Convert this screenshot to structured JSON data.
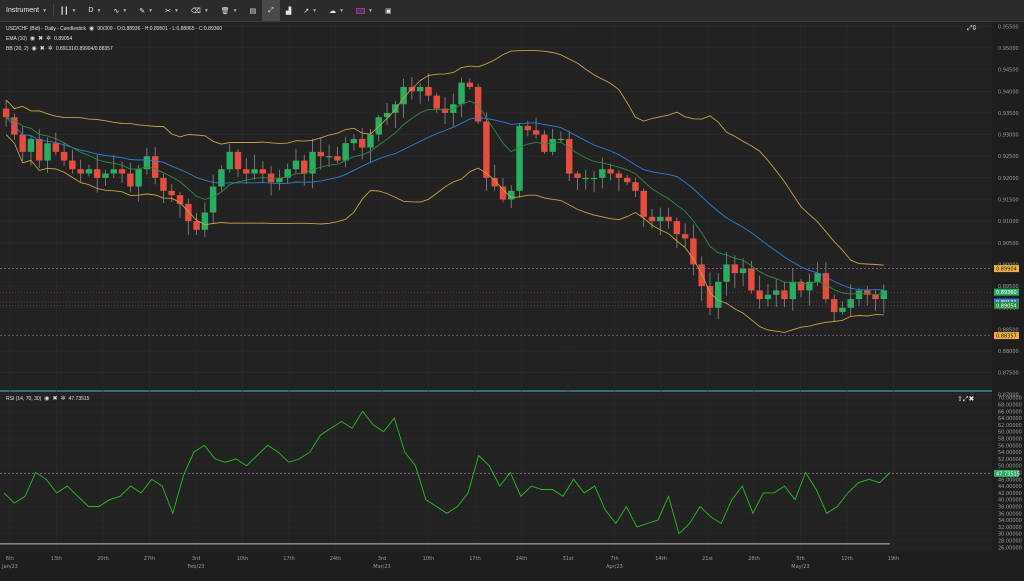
{
  "toolbar": {
    "instrument_label": "Instrument",
    "period_label": "D",
    "items": [
      "candle-type",
      "drawing-pencil",
      "crosshair",
      "eraser",
      "trash",
      "template",
      "fullscreen",
      "chart-bars",
      "share",
      "weather-settings",
      "language-flag",
      "maximize"
    ]
  },
  "legend": {
    "main": "USD/CHF (Bid) - Daily - Candlestick",
    "main_values": "90/300 - O:0.88936 - H:0.89501 - L:0.88865 - C:0.89360",
    "ema": "EMA (10)",
    "ema_value": "0.89054",
    "bb": "BB (20, 2)",
    "bb_value": "0.89131/0.89904/0.88357",
    "rsi": "RSI (14, 70, 30)",
    "rsi_value": "47.73515"
  },
  "price_axis": {
    "ticks": [
      "0.95500",
      "0.95000",
      "0.94500",
      "0.94000",
      "0.93500",
      "0.93000",
      "0.92500",
      "0.92000",
      "0.91500",
      "0.91000",
      "0.90500",
      "0.90000",
      "0.89500",
      "0.89000",
      "0.88500",
      "0.88000",
      "0.87500",
      "0.87000"
    ],
    "badges": [
      {
        "label": "0.89904",
        "value": 0.89904,
        "color": "#f0b23a",
        "text_color": "#222"
      },
      {
        "label": "0.89360",
        "value": 0.8936,
        "color": "#27ae60",
        "text_color": "#fff"
      },
      {
        "label": "0.89131",
        "value": 0.89131,
        "color": "#2a7fd4",
        "text_color": "#fff"
      },
      {
        "label": "0.89054",
        "value": 0.89054,
        "color": "#2e8b3e",
        "text_color": "#fff"
      },
      {
        "label": "0.88357",
        "value": 0.88357,
        "color": "#f0b23a",
        "text_color": "#222"
      }
    ]
  },
  "rsi_axis": {
    "ticks": [
      "70.00000",
      "68.00000",
      "66.00000",
      "64.00000",
      "62.00000",
      "60.00000",
      "58.00000",
      "56.00000",
      "54.00000",
      "52.00000",
      "50.00000",
      "48.00000",
      "46.00000",
      "44.00000",
      "42.00000",
      "40.00000",
      "38.00000",
      "36.00000",
      "34.00000",
      "32.00000",
      "30.00000",
      "28.00000",
      "26.00000"
    ],
    "badge": {
      "label": "47.73515",
      "value": 47.73515,
      "color": "#27ae60"
    }
  },
  "time_axis": {
    "labels": [
      {
        "t": "6th",
        "sub": "Jan/23"
      },
      {
        "t": "13th",
        "sub": ""
      },
      {
        "t": "20th",
        "sub": ""
      },
      {
        "t": "27th",
        "sub": ""
      },
      {
        "t": "3rd",
        "sub": "Feb/23"
      },
      {
        "t": "10th",
        "sub": ""
      },
      {
        "t": "17th",
        "sub": ""
      },
      {
        "t": "24th",
        "sub": ""
      },
      {
        "t": "3rd",
        "sub": "Mar/23"
      },
      {
        "t": "10th",
        "sub": ""
      },
      {
        "t": "17th",
        "sub": ""
      },
      {
        "t": "24th",
        "sub": ""
      },
      {
        "t": "31st",
        "sub": ""
      },
      {
        "t": "7th",
        "sub": "Apr/23"
      },
      {
        "t": "14th",
        "sub": ""
      },
      {
        "t": "21st",
        "sub": ""
      },
      {
        "t": "28th",
        "sub": ""
      },
      {
        "t": "5th",
        "sub": "May/23"
      },
      {
        "t": "12th",
        "sub": ""
      },
      {
        "t": "19th",
        "sub": ""
      }
    ]
  },
  "colors": {
    "up": "#27ae60",
    "down": "#e74c3c",
    "ema": "#2e8b3e",
    "bb_mid": "#2a7fd4",
    "bb_band": "#c8a040",
    "rsi": "#22c01e",
    "guide": "#b05aa8"
  },
  "chart_data": {
    "type": "candlestick",
    "close": [
      0.934,
      0.93,
      0.926,
      0.929,
      0.924,
      0.928,
      0.926,
      0.924,
      0.922,
      0.921,
      0.922,
      0.92,
      0.921,
      0.922,
      0.921,
      0.918,
      0.922,
      0.925,
      0.92,
      0.917,
      0.916,
      0.914,
      0.91,
      0.908,
      0.912,
      0.918,
      0.922,
      0.926,
      0.922,
      0.921,
      0.922,
      0.921,
      0.919,
      0.92,
      0.922,
      0.924,
      0.921,
      0.926,
      0.925,
      0.925,
      0.924,
      0.928,
      0.929,
      0.927,
      0.93,
      0.934,
      0.935,
      0.937,
      0.941,
      0.94,
      0.941,
      0.939,
      0.936,
      0.935,
      0.937,
      0.942,
      0.941,
      0.933,
      0.92,
      0.918,
      0.915,
      0.917,
      0.932,
      0.931,
      0.93,
      0.926,
      0.929,
      0.929,
      0.921,
      0.92,
      0.92,
      0.92,
      0.922,
      0.921,
      0.92,
      0.919,
      0.917,
      0.911,
      0.91,
      0.911,
      0.91,
      0.907,
      0.906,
      0.9,
      0.895,
      0.89,
      0.896,
      0.9,
      0.898,
      0.899,
      0.894,
      0.892,
      0.893,
      0.894,
      0.892,
      0.896,
      0.894,
      0.896,
      0.898,
      0.892,
      0.889,
      0.89,
      0.892,
      0.894,
      0.893,
      0.892,
      0.894
    ],
    "y_range": [
      0.871,
      0.956
    ],
    "rsi": [
      42,
      39,
      41,
      48,
      46,
      42,
      44,
      41,
      38,
      38,
      40,
      41,
      44,
      42,
      46,
      44,
      36,
      47,
      54,
      56,
      52,
      51,
      52,
      50,
      53,
      56,
      54,
      51,
      52,
      54,
      59,
      61,
      63,
      61,
      66,
      62,
      60,
      64,
      54,
      50,
      40,
      38,
      36,
      38,
      42,
      53,
      50,
      44,
      48,
      41,
      44,
      43,
      43,
      41,
      46,
      42,
      44,
      37,
      33,
      38,
      32,
      33,
      34,
      41,
      30,
      33,
      38,
      35,
      33,
      40,
      44,
      36,
      42,
      42,
      44,
      40,
      48,
      43,
      36,
      38,
      42,
      45,
      46,
      45,
      48
    ],
    "rsi_range": [
      25.5,
      70.5
    ],
    "rsi_guide": 47.73515
  }
}
